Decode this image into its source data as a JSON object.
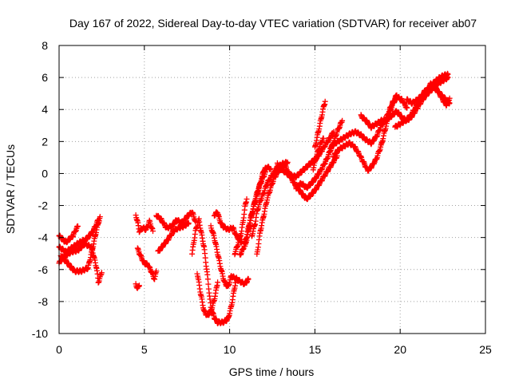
{
  "chart_data": {
    "type": "scatter",
    "title": "Day 167 of 2022, Sidereal Day-to-day VTEC variation (SDTVAR) for receiver ab07",
    "xlabel": "GPS time / hours",
    "ylabel": "SDTVAR / TECUs",
    "xlim": [
      0,
      25
    ],
    "ylim": [
      -10,
      8
    ],
    "x_ticks": [
      0,
      5,
      10,
      15,
      20,
      25
    ],
    "y_ticks": [
      -10,
      -8,
      -6,
      -4,
      -2,
      0,
      2,
      4,
      6,
      8
    ],
    "grid": true,
    "marker": "plus",
    "color": "#ff0000",
    "series": [
      {
        "segments": [
          [
            [
              0.0,
              -4.6
            ],
            [
              0.4,
              -4.9
            ],
            [
              0.8,
              -4.6
            ],
            [
              1.2,
              -4.3
            ],
            [
              1.6,
              -4.1
            ],
            [
              2.0,
              -3.6
            ],
            [
              2.3,
              -2.9
            ]
          ],
          [
            [
              0.0,
              -3.9
            ],
            [
              0.4,
              -4.3
            ],
            [
              0.8,
              -3.9
            ],
            [
              1.1,
              -3.3
            ]
          ],
          [
            [
              0.1,
              -5.1
            ],
            [
              0.5,
              -5.6
            ],
            [
              0.9,
              -6.1
            ],
            [
              1.3,
              -6.1
            ],
            [
              1.7,
              -5.9
            ],
            [
              2.0,
              -4.5
            ],
            [
              2.2,
              -3.5
            ],
            [
              2.4,
              -2.7
            ]
          ],
          [
            [
              0.0,
              -5.6
            ],
            [
              0.3,
              -5.2
            ],
            [
              0.7,
              -4.9
            ],
            [
              1.1,
              -4.8
            ],
            [
              1.5,
              -4.4
            ],
            [
              1.9,
              -4.6
            ],
            [
              2.2,
              -5.9
            ],
            [
              2.3,
              -6.8
            ],
            [
              2.5,
              -6.2
            ]
          ],
          [
            [
              4.5,
              -6.9
            ],
            [
              4.6,
              -7.2
            ],
            [
              4.7,
              -7.0
            ]
          ],
          [
            [
              4.5,
              -2.6
            ],
            [
              4.6,
              -3.0
            ],
            [
              4.7,
              -3.6
            ],
            [
              4.9,
              -3.4
            ],
            [
              5.1,
              -3.5
            ],
            [
              5.3,
              -3.0
            ],
            [
              5.5,
              -3.6
            ]
          ],
          [
            [
              4.6,
              -4.7
            ],
            [
              4.8,
              -5.2
            ],
            [
              5.0,
              -5.6
            ],
            [
              5.2,
              -5.7
            ],
            [
              5.4,
              -6.1
            ],
            [
              5.6,
              -6.6
            ],
            [
              5.7,
              -6.1
            ]
          ],
          [
            [
              5.7,
              -2.6
            ],
            [
              6.0,
              -2.9
            ],
            [
              6.3,
              -3.4
            ],
            [
              6.6,
              -3.3
            ],
            [
              6.9,
              -2.9
            ],
            [
              7.2,
              -3.1
            ],
            [
              7.5,
              -2.7
            ],
            [
              7.8,
              -2.4
            ],
            [
              8.0,
              -3.0
            ]
          ],
          [
            [
              5.8,
              -4.9
            ],
            [
              6.1,
              -4.5
            ],
            [
              6.4,
              -4.1
            ],
            [
              6.7,
              -3.6
            ],
            [
              7.0,
              -3.4
            ],
            [
              7.3,
              -3.3
            ],
            [
              7.6,
              -3.1
            ]
          ],
          [
            [
              7.8,
              -5.0
            ],
            [
              8.0,
              -3.6
            ],
            [
              8.2,
              -2.9
            ],
            [
              8.3,
              -3.5
            ],
            [
              8.5,
              -4.6
            ],
            [
              8.6,
              -5.5
            ],
            [
              8.7,
              -6.4
            ],
            [
              8.8,
              -7.4
            ],
            [
              8.9,
              -8.4
            ],
            [
              9.1,
              -9.0
            ],
            [
              9.3,
              -9.3
            ],
            [
              9.6,
              -9.3
            ],
            [
              9.9,
              -9.1
            ],
            [
              10.1,
              -8.3
            ],
            [
              10.3,
              -7.1
            ],
            [
              10.4,
              -6.5
            ]
          ],
          [
            [
              8.1,
              -6.2
            ],
            [
              8.3,
              -7.5
            ],
            [
              8.5,
              -8.6
            ],
            [
              8.7,
              -8.9
            ],
            [
              8.9,
              -8.6
            ],
            [
              9.1,
              -7.9
            ],
            [
              9.3,
              -6.8
            ]
          ],
          [
            [
              8.9,
              -3.3
            ],
            [
              9.1,
              -4.0
            ],
            [
              9.3,
              -5.0
            ],
            [
              9.5,
              -6.0
            ],
            [
              9.7,
              -6.8
            ],
            [
              9.9,
              -7.1
            ],
            [
              10.1,
              -6.4
            ],
            [
              10.4,
              -6.6
            ],
            [
              10.7,
              -6.8
            ],
            [
              10.9,
              -6.9
            ],
            [
              11.1,
              -6.6
            ]
          ],
          [
            [
              9.1,
              -2.6
            ],
            [
              9.3,
              -2.4
            ],
            [
              9.4,
              -2.9
            ],
            [
              9.6,
              -3.3
            ],
            [
              9.9,
              -3.5
            ],
            [
              10.2,
              -3.4
            ],
            [
              10.4,
              -3.9
            ],
            [
              10.7,
              -4.3
            ]
          ],
          [
            [
              10.3,
              -5.0
            ],
            [
              10.5,
              -4.4
            ],
            [
              10.7,
              -3.6
            ],
            [
              10.8,
              -2.9
            ],
            [
              10.9,
              -2.1
            ],
            [
              11.0,
              -1.6
            ]
          ],
          [
            [
              10.6,
              -5.1
            ],
            [
              10.8,
              -4.7
            ],
            [
              11.0,
              -3.9
            ],
            [
              11.2,
              -2.9
            ],
            [
              11.4,
              -2.1
            ],
            [
              11.6,
              -1.4
            ],
            [
              11.8,
              -0.6
            ],
            [
              12.0,
              0.2
            ],
            [
              12.2,
              0.4
            ],
            [
              12.4,
              0.3
            ]
          ],
          [
            [
              10.9,
              -4.6
            ],
            [
              11.1,
              -3.6
            ],
            [
              11.3,
              -2.6
            ],
            [
              11.5,
              -1.6
            ],
            [
              11.7,
              -0.9
            ],
            [
              11.9,
              -0.4
            ],
            [
              12.1,
              0.1
            ]
          ],
          [
            [
              11.3,
              -3.9
            ],
            [
              11.5,
              -3.1
            ],
            [
              11.6,
              -2.4
            ],
            [
              11.8,
              -1.7
            ],
            [
              12.0,
              -1.2
            ],
            [
              12.2,
              -0.6
            ],
            [
              12.5,
              -0.1
            ],
            [
              12.8,
              0.4
            ],
            [
              13.1,
              0.6
            ],
            [
              13.4,
              0.7
            ]
          ],
          [
            [
              11.6,
              -5.1
            ],
            [
              11.8,
              -3.6
            ],
            [
              12.0,
              -2.6
            ],
            [
              12.2,
              -1.6
            ],
            [
              12.4,
              -0.9
            ],
            [
              12.6,
              -0.3
            ],
            [
              12.9,
              0.2
            ],
            [
              13.2,
              0.4
            ]
          ],
          [
            [
              12.8,
              0.6
            ],
            [
              13.1,
              0.2
            ],
            [
              13.5,
              -0.1
            ],
            [
              13.9,
              -0.2
            ],
            [
              14.3,
              0.2
            ],
            [
              14.6,
              0.5
            ],
            [
              14.9,
              0.8
            ],
            [
              15.2,
              1.1
            ],
            [
              15.5,
              1.6
            ],
            [
              15.8,
              2.1
            ],
            [
              16.1,
              2.6
            ]
          ],
          [
            [
              13.3,
              0.4
            ],
            [
              13.6,
              -0.3
            ],
            [
              13.9,
              -0.8
            ],
            [
              14.2,
              -1.2
            ],
            [
              14.5,
              -1.6
            ],
            [
              14.8,
              -1.3
            ],
            [
              15.1,
              -0.9
            ],
            [
              15.4,
              -0.4
            ],
            [
              15.7,
              0.1
            ],
            [
              16.0,
              0.6
            ],
            [
              16.3,
              1.1
            ]
          ],
          [
            [
              13.9,
              -0.9
            ],
            [
              14.2,
              -0.6
            ],
            [
              14.5,
              -0.9
            ],
            [
              14.8,
              -0.6
            ],
            [
              15.1,
              -0.2
            ],
            [
              15.4,
              0.3
            ],
            [
              15.7,
              0.9
            ],
            [
              16.0,
              1.7
            ],
            [
              16.3,
              2.6
            ],
            [
              16.6,
              3.3
            ]
          ],
          [
            [
              15.0,
              1.6
            ],
            [
              15.2,
              2.6
            ],
            [
              15.4,
              3.6
            ],
            [
              15.5,
              4.1
            ],
            [
              15.6,
              4.5
            ]
          ],
          [
            [
              14.9,
              0.3
            ],
            [
              15.1,
              1.1
            ],
            [
              15.3,
              1.8
            ],
            [
              15.5,
              2.2
            ]
          ],
          [
            [
              15.9,
              1.6
            ],
            [
              16.2,
              1.9
            ],
            [
              16.5,
              2.1
            ],
            [
              16.8,
              2.3
            ],
            [
              17.1,
              2.5
            ],
            [
              17.4,
              2.6
            ],
            [
              17.7,
              2.4
            ],
            [
              18.0,
              2.1
            ],
            [
              18.3,
              1.9
            ],
            [
              18.6,
              2.3
            ],
            [
              18.9,
              3.0
            ],
            [
              19.2,
              3.5
            ],
            [
              19.5,
              4.3
            ],
            [
              19.8,
              4.9
            ]
          ],
          [
            [
              16.1,
              1.1
            ],
            [
              16.4,
              1.5
            ],
            [
              16.7,
              1.7
            ],
            [
              17.0,
              1.9
            ],
            [
              17.3,
              1.7
            ],
            [
              17.6,
              1.2
            ],
            [
              17.9,
              0.6
            ],
            [
              18.1,
              0.2
            ],
            [
              18.3,
              0.4
            ],
            [
              18.6,
              0.9
            ],
            [
              18.9,
              1.8
            ],
            [
              19.2,
              3.1
            ],
            [
              19.5,
              4.2
            ],
            [
              19.8,
              4.8
            ],
            [
              20.1,
              4.6
            ],
            [
              20.4,
              4.1
            ]
          ],
          [
            [
              17.7,
              3.6
            ],
            [
              18.0,
              3.3
            ],
            [
              18.3,
              2.9
            ],
            [
              18.6,
              3.1
            ],
            [
              18.9,
              3.3
            ],
            [
              19.2,
              3.4
            ],
            [
              19.5,
              3.6
            ],
            [
              19.8,
              3.9
            ],
            [
              20.1,
              3.5
            ],
            [
              20.4,
              3.3
            ],
            [
              20.7,
              3.6
            ],
            [
              21.0,
              4.1
            ],
            [
              21.3,
              4.6
            ],
            [
              21.6,
              5.0
            ],
            [
              21.9,
              5.3
            ],
            [
              22.2,
              5.6
            ],
            [
              22.5,
              5.8
            ],
            [
              22.8,
              6.0
            ]
          ],
          [
            [
              19.7,
              2.9
            ],
            [
              20.0,
              3.1
            ],
            [
              20.3,
              3.3
            ],
            [
              20.6,
              3.6
            ],
            [
              20.9,
              4.1
            ],
            [
              21.2,
              4.6
            ],
            [
              21.5,
              5.1
            ],
            [
              21.8,
              5.6
            ],
            [
              22.1,
              5.3
            ],
            [
              22.4,
              4.9
            ],
            [
              22.7,
              4.6
            ],
            [
              22.9,
              4.4
            ]
          ],
          [
            [
              20.4,
              4.6
            ],
            [
              20.7,
              4.4
            ],
            [
              21.0,
              4.6
            ],
            [
              21.3,
              4.9
            ],
            [
              21.6,
              5.1
            ],
            [
              21.9,
              5.6
            ],
            [
              22.2,
              5.9
            ],
            [
              22.5,
              6.1
            ],
            [
              22.8,
              6.2
            ]
          ],
          [
            [
              21.4,
              5.1
            ],
            [
              21.7,
              5.3
            ],
            [
              22.0,
              5.4
            ],
            [
              22.3,
              5.0
            ],
            [
              22.5,
              4.6
            ],
            [
              22.7,
              4.3
            ],
            [
              22.9,
              4.7
            ]
          ]
        ]
      }
    ]
  }
}
